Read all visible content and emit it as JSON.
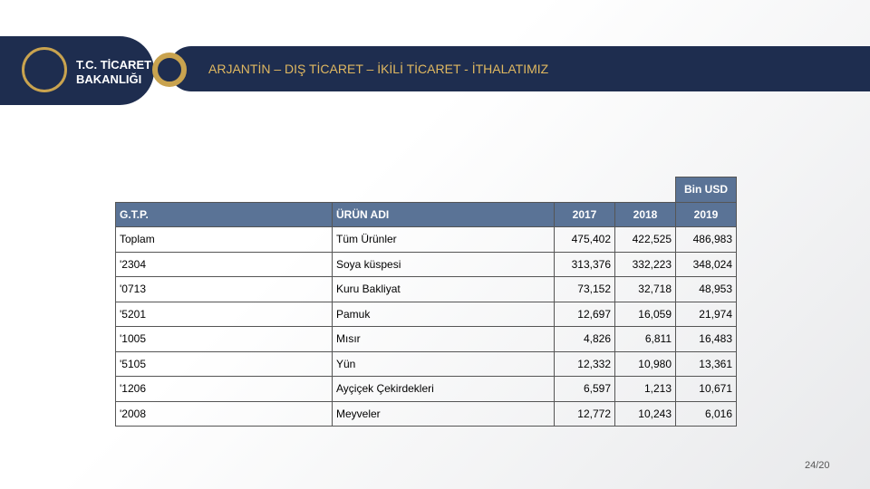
{
  "header": {
    "logo_line1": "T.C. TİCARET",
    "logo_line2": "BAKANLIĞI",
    "title": "ARJANTİN – DIŞ TİCARET – İKİLİ TİCARET - İTHALATIMIZ"
  },
  "table": {
    "unit": "Bin USD",
    "columns": [
      "G.T.P.",
      "ÜRÜN ADI",
      "2017",
      "2018",
      "2019"
    ],
    "rows": [
      [
        "Toplam",
        "Tüm Ürünler",
        "475,402",
        "422,525",
        "486,983"
      ],
      [
        "'2304",
        "Soya küspesi",
        "313,376",
        "332,223",
        "348,024"
      ],
      [
        "'0713",
        "Kuru Bakliyat",
        "73,152",
        "32,718",
        "48,953"
      ],
      [
        "'5201",
        "Pamuk",
        "12,697",
        "16,059",
        "21,974"
      ],
      [
        "'1005",
        "Mısır",
        "4,826",
        "6,811",
        "16,483"
      ],
      [
        "'5105",
        "Yün",
        "12,332",
        "10,980",
        "13,361"
      ],
      [
        "'1206",
        "Ayçiçek Çekirdekleri",
        "6,597",
        "1,213",
        "10,671"
      ],
      [
        "'2008",
        "Meyveler",
        "12,772",
        "10,243",
        "6,016"
      ]
    ]
  },
  "footer": {
    "page": "24/20"
  }
}
